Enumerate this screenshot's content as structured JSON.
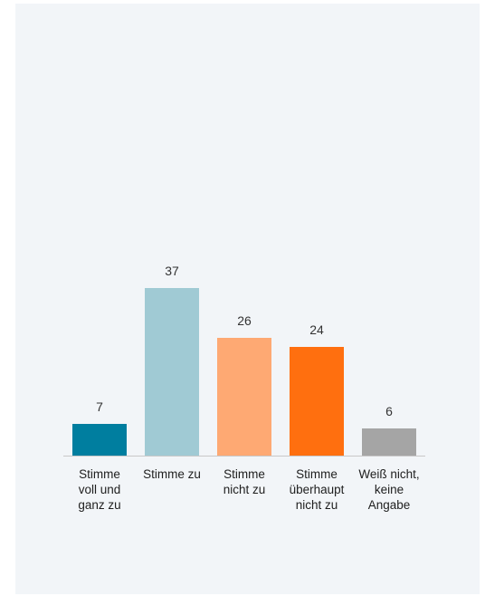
{
  "chart_data": {
    "type": "bar",
    "categories": [
      [
        "Stimme",
        "voll und",
        "ganz zu"
      ],
      [
        "Stimme zu"
      ],
      [
        "Stimme",
        "nicht zu"
      ],
      [
        "Stimme",
        "überhaupt",
        "nicht zu"
      ],
      [
        "Weiß nicht,",
        "keine",
        "Angabe"
      ]
    ],
    "values": [
      7,
      37,
      26,
      24,
      6
    ],
    "value_labels": [
      "7",
      "37",
      "26",
      "24",
      "6"
    ],
    "colors": [
      "#007e9f",
      "#a0cad4",
      "#fea973",
      "#ff6f0f",
      "#a5a5a5"
    ],
    "title": "",
    "xlabel": "",
    "ylabel": "",
    "ylim": [
      0,
      40
    ],
    "grid": false,
    "legend": "none"
  },
  "style": {
    "panel_background": "#f2f5f8",
    "baseline_color": "#c8c8c8"
  }
}
